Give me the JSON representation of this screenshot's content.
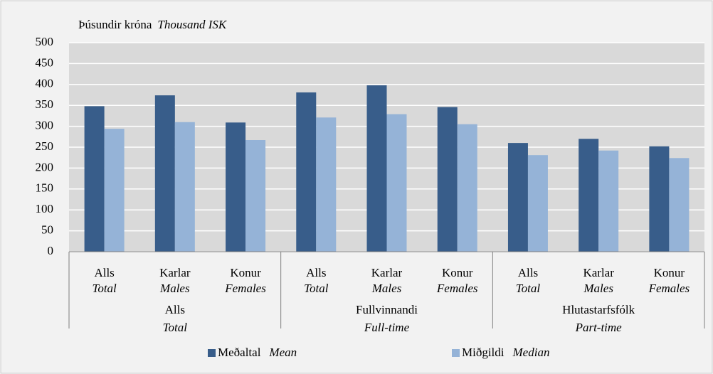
{
  "chart_data": {
    "type": "bar",
    "y_label": "Þúsundir króna",
    "y_label_en": "Thousand ISK",
    "categories": [
      "Alls",
      "Karlar",
      "Konur",
      "Alls",
      "Karlar",
      "Konur",
      "Alls",
      "Karlar",
      "Konur"
    ],
    "categories_en": [
      "Total",
      "Males",
      "Females",
      "Total",
      "Males",
      "Females",
      "Total",
      "Males",
      "Females"
    ],
    "groups": [
      {
        "name": "Alls",
        "name_en": "Total",
        "size": 3
      },
      {
        "name": "Fullvinnandi",
        "name_en": "Full-time",
        "size": 3
      },
      {
        "name": "Hlutastarfsfólk",
        "name_en": "Part-time",
        "size": 3
      }
    ],
    "series": [
      {
        "name": "Meðaltal",
        "name_en": "Mean",
        "color": "#385d8a",
        "values": [
          348,
          374,
          309,
          381,
          398,
          346,
          260,
          270,
          252
        ]
      },
      {
        "name": "Miðgildi",
        "name_en": "Median",
        "color": "#95b3d7",
        "values": [
          294,
          310,
          267,
          321,
          329,
          305,
          231,
          242,
          224
        ]
      }
    ],
    "ylim": [
      0,
      500
    ],
    "yticks": [
      0,
      50,
      100,
      150,
      200,
      250,
      300,
      350,
      400,
      450,
      500
    ],
    "grid": true
  }
}
